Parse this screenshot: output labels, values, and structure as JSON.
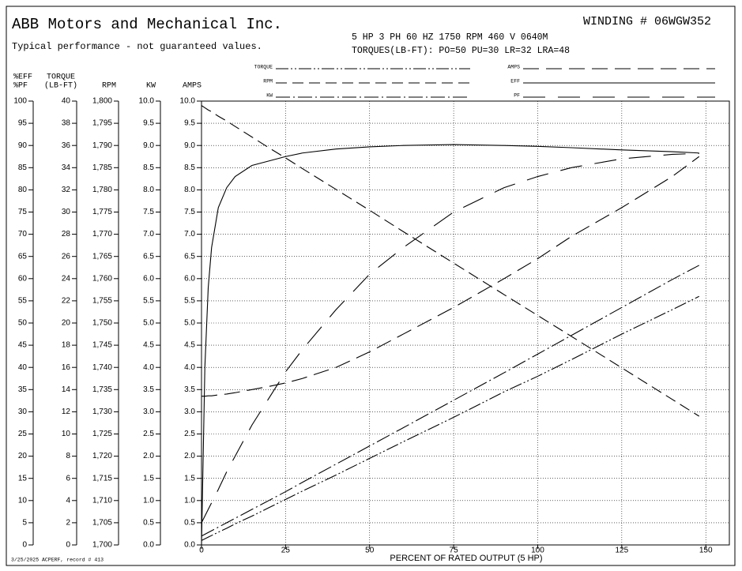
{
  "chart_data": {
    "type": "line",
    "company": "ABB Motors and Mechanical Inc.",
    "subtitle": "Typical performance - not guaranteed values.",
    "winding": "WINDING # 06WGW352",
    "rating": "5 HP  3 PH  60 HZ  1750 RPM  460 V  0640M",
    "torques": "TORQUES(LB-FT): PO=50  PU=30  LR=32  LRA=48",
    "footer": "3/25/2025 ACPERF, record # 413",
    "x_label": "PERCENT OF RATED OUTPUT (5 HP)",
    "xlim": [
      0,
      157
    ],
    "xticks": [
      0,
      25,
      50,
      75,
      100,
      125,
      150
    ],
    "grid": true,
    "x": [
      0,
      1,
      2,
      3,
      5,
      7.5,
      10,
      15,
      20,
      25,
      30,
      40,
      50,
      60,
      75,
      90,
      100,
      110,
      125,
      140,
      148
    ],
    "y_axes": [
      {
        "title": [
          "%EFF",
          "%PF"
        ],
        "ylim": [
          0,
          100
        ],
        "yticks": [
          0,
          5,
          10,
          15,
          20,
          25,
          30,
          35,
          40,
          45,
          50,
          55,
          60,
          65,
          70,
          75,
          80,
          85,
          90,
          95,
          100
        ]
      },
      {
        "title": [
          "TORQUE",
          "(LB-FT)"
        ],
        "ylim": [
          0,
          40
        ],
        "yticks": [
          0,
          2,
          4,
          6,
          8,
          10,
          12,
          14,
          16,
          18,
          20,
          22,
          24,
          26,
          28,
          30,
          32,
          34,
          36,
          38,
          40
        ]
      },
      {
        "title": [
          "RPM"
        ],
        "ylim": [
          1700,
          1800
        ],
        "yticks": [
          {
            "value": 1700,
            "label": "1,700"
          },
          {
            "value": 1705,
            "label": "1,705"
          },
          {
            "value": 1710,
            "label": "1,710"
          },
          {
            "value": 1715,
            "label": "1,715"
          },
          {
            "value": 1720,
            "label": "1,720"
          },
          {
            "value": 1725,
            "label": "1,725"
          },
          {
            "value": 1730,
            "label": "1,730"
          },
          {
            "value": 1735,
            "label": "1,735"
          },
          {
            "value": 1740,
            "label": "1,740"
          },
          {
            "value": 1745,
            "label": "1,745"
          },
          {
            "value": 1750,
            "label": "1,750"
          },
          {
            "value": 1755,
            "label": "1,755"
          },
          {
            "value": 1760,
            "label": "1,760"
          },
          {
            "value": 1765,
            "label": "1,765"
          },
          {
            "value": 1770,
            "label": "1,770"
          },
          {
            "value": 1775,
            "label": "1,775"
          },
          {
            "value": 1780,
            "label": "1,780"
          },
          {
            "value": 1785,
            "label": "1,785"
          },
          {
            "value": 1790,
            "label": "1,790"
          },
          {
            "value": 1795,
            "label": "1,795"
          },
          {
            "value": 1800,
            "label": "1,800"
          }
        ]
      },
      {
        "title": [
          "KW"
        ],
        "ylim": [
          0,
          10
        ],
        "yticks": [
          {
            "value": 0,
            "label": "0.0"
          },
          0.5,
          {
            "value": 1,
            "label": "1.0"
          },
          1.5,
          {
            "value": 2,
            "label": "2.0"
          },
          2.5,
          {
            "value": 3,
            "label": "3.0"
          },
          3.5,
          {
            "value": 4,
            "label": "4.0"
          },
          4.5,
          {
            "value": 5,
            "label": "5.0"
          },
          5.5,
          {
            "value": 6,
            "label": "6.0"
          },
          6.5,
          {
            "value": 7,
            "label": "7.0"
          },
          7.5,
          {
            "value": 8,
            "label": "8.0"
          },
          8.5,
          {
            "value": 9,
            "label": "9.0"
          },
          9.5,
          {
            "value": 10,
            "label": "10.0"
          }
        ]
      },
      {
        "title": [
          "AMPS"
        ],
        "ylim": [
          0,
          10
        ],
        "yticks": [
          {
            "value": 0,
            "label": "0.0"
          },
          0.5,
          {
            "value": 1,
            "label": "1.0"
          },
          1.5,
          {
            "value": 2,
            "label": "2.0"
          },
          2.5,
          {
            "value": 3,
            "label": "3.0"
          },
          3.5,
          {
            "value": 4,
            "label": "4.0"
          },
          4.5,
          {
            "value": 5,
            "label": "5.0"
          },
          5.5,
          {
            "value": 6,
            "label": "6.0"
          },
          6.5,
          {
            "value": 7,
            "label": "7.0"
          },
          7.5,
          {
            "value": 8,
            "label": "8.0"
          },
          8.5,
          {
            "value": 9,
            "label": "9.0"
          },
          9.5,
          {
            "value": 10,
            "label": "10.0"
          }
        ]
      }
    ],
    "series": [
      {
        "name": "TORQUE",
        "axis": 1,
        "color": "#000000",
        "dash": "16,3,2,3,2,3",
        "values": [
          0.4,
          0.55,
          0.7,
          0.85,
          1.15,
          1.5,
          1.9,
          2.6,
          3.35,
          4.1,
          4.85,
          6.3,
          7.8,
          9.3,
          11.5,
          13.8,
          15.2,
          16.7,
          19.0,
          21.2,
          22.4
        ]
      },
      {
        "name": "RPM",
        "axis": 2,
        "color": "#000000",
        "dash": "14,7",
        "values": [
          1799,
          1798.5,
          1798,
          1797.6,
          1796.6,
          1795.5,
          1794.3,
          1791.9,
          1789.5,
          1787.2,
          1784.8,
          1780.1,
          1775.4,
          1770.6,
          1763.5,
          1756.4,
          1751.7,
          1747,
          1739.9,
          1732.8,
          1729
        ]
      },
      {
        "name": "KW",
        "axis": 3,
        "color": "#000000",
        "dash": "18,4,2,4",
        "values": [
          0.2,
          0.24,
          0.28,
          0.32,
          0.4,
          0.5,
          0.6,
          0.8,
          1.0,
          1.2,
          1.41,
          1.82,
          2.23,
          2.64,
          3.26,
          3.88,
          4.3,
          4.72,
          5.35,
          5.98,
          6.3
        ]
      },
      {
        "name": "AMPS",
        "axis": 4,
        "color": "#000000",
        "dash": "20,9",
        "values": [
          3.35,
          3.35,
          3.36,
          3.36,
          3.38,
          3.4,
          3.43,
          3.5,
          3.57,
          3.65,
          3.75,
          4.0,
          4.35,
          4.75,
          5.35,
          6.0,
          6.45,
          6.95,
          7.6,
          8.3,
          8.75
        ]
      },
      {
        "name": "EFF",
        "axis": 0,
        "color": "#000000",
        "values": [
          0,
          40,
          58,
          67,
          76,
          80.5,
          83,
          85.5,
          86.5,
          87.5,
          88.3,
          89.2,
          89.7,
          90.0,
          90.2,
          90.0,
          89.8,
          89.5,
          89.0,
          88.6,
          88.3
        ]
      },
      {
        "name": "PF",
        "axis": 0,
        "color": "#000000",
        "dash": "28,16",
        "values": [
          5,
          6.5,
          8,
          9.5,
          12.5,
          16.5,
          20,
          27,
          33,
          39,
          44,
          53,
          61,
          67,
          75,
          80.5,
          83,
          85,
          87,
          88,
          88.2
        ]
      }
    ]
  }
}
